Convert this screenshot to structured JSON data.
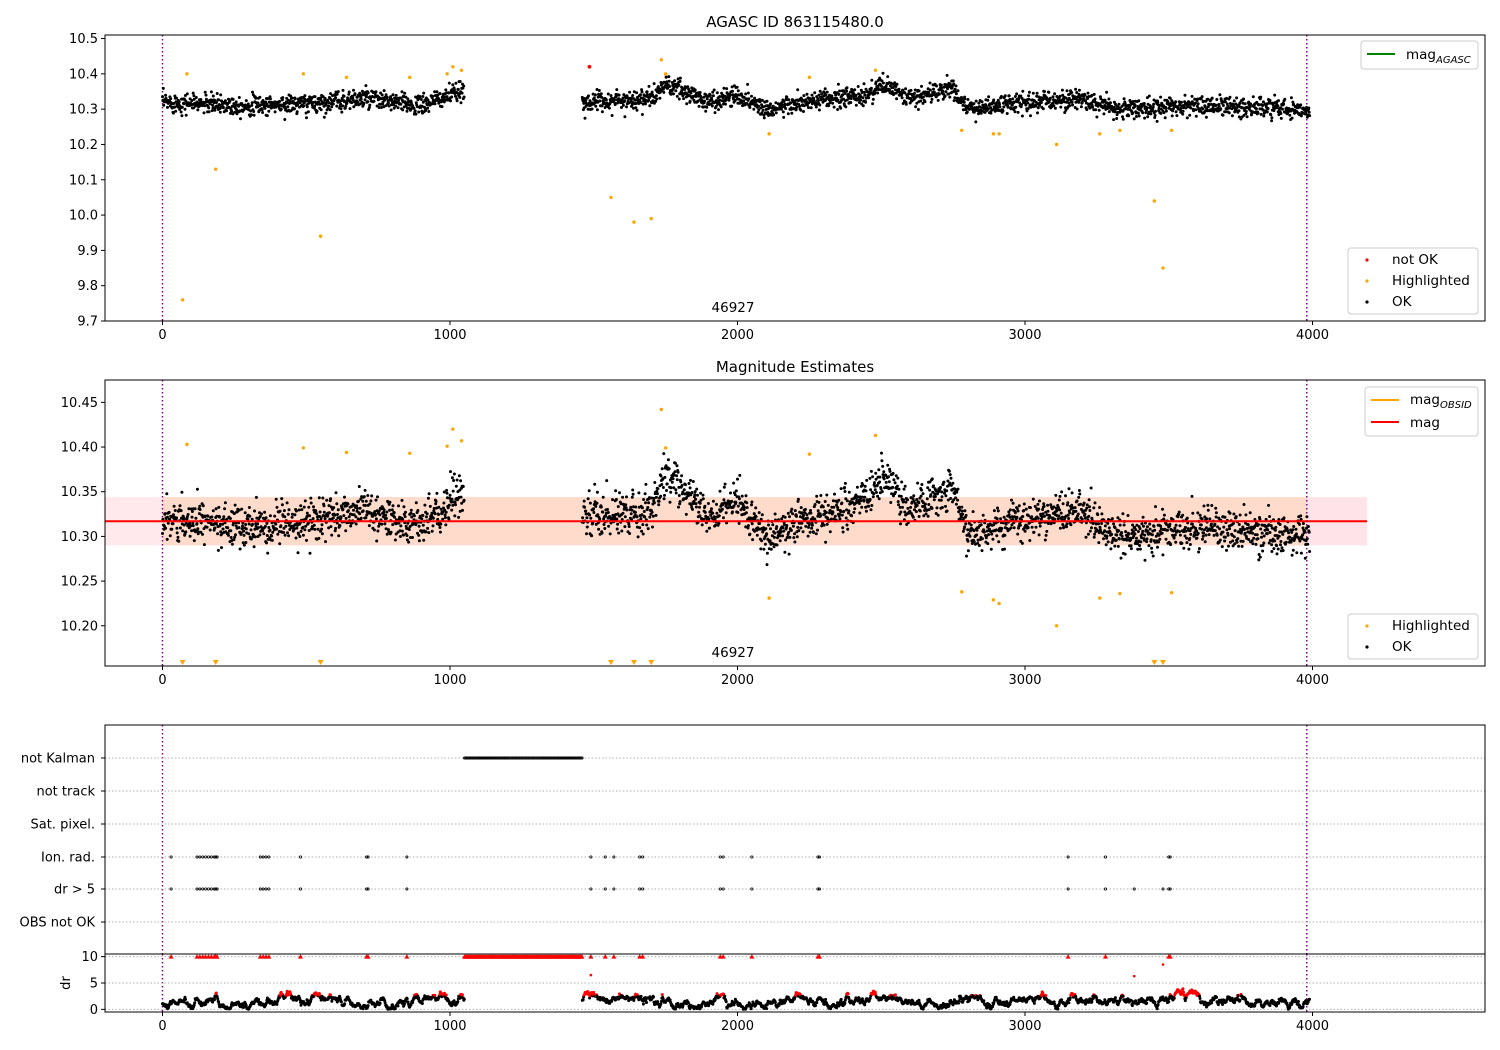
{
  "colors": {
    "ok": "#000000",
    "highlighted": "#ffa500",
    "not_ok": "#ff0000",
    "mag_agasc": "#008000",
    "mag_obsid": "#ffa500",
    "mag": "#ff0000",
    "band": "#ffb08f",
    "band_right": "#ffc0cb",
    "obs_marker": "#800080"
  },
  "chart_data": [
    {
      "type": "scatter",
      "title": "AGASC ID 863115480.0",
      "xlim": [
        -200,
        4600
      ],
      "ylim": [
        9.7,
        10.51
      ],
      "xticks": [
        0,
        1000,
        2000,
        3000,
        4000
      ],
      "yticks": [
        9.7,
        9.8,
        9.9,
        10.0,
        10.1,
        10.2,
        10.3,
        10.4,
        10.5
      ],
      "ytick_labels": [
        "9.7",
        "9.8",
        "9.9",
        "10.0",
        "10.1",
        "10.2",
        "10.3",
        "10.4",
        "10.5"
      ],
      "obs_boundaries": [
        0,
        3980
      ],
      "obs_label": "46927",
      "obs_label_x": 1990,
      "line_legend": [
        {
          "name": "mag",
          "sub": "AGASC",
          "color": "#008000"
        }
      ],
      "scatter_legend": [
        {
          "name": "not OK",
          "color": "#ff0000"
        },
        {
          "name": "Highlighted",
          "color": "#ffa500"
        },
        {
          "name": "OK",
          "color": "#000000"
        }
      ],
      "ok_segments": [
        {
          "x": [
            0,
            1050
          ],
          "trend": [
            [
              0,
              10.32
            ],
            [
              300,
              10.31
            ],
            [
              500,
              10.315
            ],
            [
              700,
              10.33
            ],
            [
              900,
              10.31
            ],
            [
              1000,
              10.34
            ],
            [
              1050,
              10.35
            ]
          ],
          "scatter": 0.025
        },
        {
          "x": [
            1460,
            3990
          ],
          "trend": [
            [
              1460,
              10.32
            ],
            [
              1700,
              10.33
            ],
            [
              1750,
              10.37
            ],
            [
              1900,
              10.32
            ],
            [
              2000,
              10.34
            ],
            [
              2100,
              10.3
            ],
            [
              2250,
              10.32
            ],
            [
              2450,
              10.34
            ],
            [
              2500,
              10.37
            ],
            [
              2600,
              10.33
            ],
            [
              2750,
              10.36
            ],
            [
              2800,
              10.3
            ],
            [
              3000,
              10.32
            ],
            [
              3200,
              10.33
            ],
            [
              3300,
              10.3
            ],
            [
              3600,
              10.31
            ],
            [
              3990,
              10.3
            ]
          ],
          "scatter": 0.025
        }
      ],
      "highlighted_points": [
        [
          70,
          9.76
        ],
        [
          85,
          10.4
        ],
        [
          185,
          10.13
        ],
        [
          490,
          10.4
        ],
        [
          550,
          9.94
        ],
        [
          640,
          10.39
        ],
        [
          860,
          10.39
        ],
        [
          990,
          10.4
        ],
        [
          1010,
          10.42
        ],
        [
          1040,
          10.41
        ],
        [
          1560,
          10.05
        ],
        [
          1640,
          9.98
        ],
        [
          1700,
          9.99
        ],
        [
          1735,
          10.44
        ],
        [
          1750,
          10.4
        ],
        [
          2110,
          10.23
        ],
        [
          2250,
          10.39
        ],
        [
          2480,
          10.41
        ],
        [
          2780,
          10.24
        ],
        [
          2890,
          10.23
        ],
        [
          2910,
          10.23
        ],
        [
          3110,
          10.2
        ],
        [
          3260,
          10.23
        ],
        [
          3330,
          10.24
        ],
        [
          3450,
          10.04
        ],
        [
          3480,
          9.85
        ],
        [
          3510,
          10.24
        ]
      ],
      "not_ok_points": [
        [
          1485,
          10.42
        ]
      ]
    },
    {
      "type": "scatter",
      "title": "Magnitude Estimates",
      "xlim": [
        -200,
        4600
      ],
      "ylim": [
        10.155,
        10.475
      ],
      "xticks": [
        0,
        1000,
        2000,
        3000,
        4000
      ],
      "yticks": [
        10.2,
        10.25,
        10.3,
        10.35,
        10.4,
        10.45
      ],
      "ytick_labels": [
        "10.20",
        "10.25",
        "10.30",
        "10.35",
        "10.40",
        "10.45"
      ],
      "obs_boundaries": [
        0,
        3980
      ],
      "obs_label": "46927",
      "obs_label_x": 1990,
      "mag_line": 10.317,
      "band": [
        10.29,
        10.344
      ],
      "band_x": [
        0,
        3980
      ],
      "band_right_x": [
        3980,
        4190
      ],
      "line_legend": [
        {
          "name": "mag",
          "sub": "OBSID",
          "color": "#ffa500"
        },
        {
          "name": "mag",
          "sub": "",
          "color": "#ff0000"
        }
      ],
      "scatter_legend": [
        {
          "name": "Highlighted",
          "color": "#ffa500"
        },
        {
          "name": "OK",
          "color": "#000000"
        }
      ],
      "ok_segments": [
        {
          "x": [
            0,
            1050
          ],
          "trend": [
            [
              0,
              10.32
            ],
            [
              300,
              10.31
            ],
            [
              500,
              10.315
            ],
            [
              700,
              10.33
            ],
            [
              900,
              10.31
            ],
            [
              1000,
              10.34
            ],
            [
              1050,
              10.35
            ]
          ],
          "scatter": 0.02
        },
        {
          "x": [
            1460,
            3990
          ],
          "trend": [
            [
              1460,
              10.32
            ],
            [
              1700,
              10.33
            ],
            [
              1750,
              10.37
            ],
            [
              1900,
              10.32
            ],
            [
              2000,
              10.34
            ],
            [
              2100,
              10.3
            ],
            [
              2250,
              10.32
            ],
            [
              2450,
              10.34
            ],
            [
              2500,
              10.37
            ],
            [
              2600,
              10.33
            ],
            [
              2750,
              10.36
            ],
            [
              2800,
              10.3
            ],
            [
              3000,
              10.32
            ],
            [
              3200,
              10.33
            ],
            [
              3300,
              10.3
            ],
            [
              3600,
              10.31
            ],
            [
              3990,
              10.3
            ]
          ],
          "scatter": 0.02
        }
      ],
      "highlighted_points": [
        [
          85,
          10.403
        ],
        [
          490,
          10.399
        ],
        [
          640,
          10.394
        ],
        [
          860,
          10.393
        ],
        [
          990,
          10.401
        ],
        [
          1010,
          10.42
        ],
        [
          1040,
          10.407
        ],
        [
          1735,
          10.442
        ],
        [
          1750,
          10.399
        ],
        [
          2110,
          10.231
        ],
        [
          2250,
          10.392
        ],
        [
          2480,
          10.413
        ],
        [
          2780,
          10.238
        ],
        [
          2890,
          10.229
        ],
        [
          2910,
          10.225
        ],
        [
          3110,
          10.2
        ],
        [
          3260,
          10.231
        ],
        [
          3330,
          10.236
        ],
        [
          3510,
          10.237
        ]
      ],
      "off_scale_markers": [
        70,
        185,
        550,
        1560,
        1640,
        1700,
        3450,
        3480
      ]
    },
    {
      "type": "event_strip",
      "xlim": [
        -200,
        4600
      ],
      "xticks": [
        0,
        1000,
        2000,
        3000,
        4000
      ],
      "obs_boundaries": [
        0,
        3980
      ],
      "rows": [
        {
          "label": "not Kalman",
          "ranges": [
            [
              1050,
              1460
            ]
          ],
          "points": []
        },
        {
          "label": "not track",
          "ranges": [],
          "points": []
        },
        {
          "label": "Sat. pixel.",
          "ranges": [],
          "points": []
        },
        {
          "label": "Ion. rad.",
          "ranges": [],
          "points": [
            30,
            120,
            130,
            140,
            150,
            160,
            170,
            180,
            185,
            190,
            340,
            350,
            360,
            370,
            480,
            710,
            715,
            850,
            1490,
            1540,
            1570,
            1660,
            1670,
            1940,
            1950,
            2050,
            2280,
            2285,
            3150,
            3280,
            3500,
            3505
          ]
        },
        {
          "label": "dr > 5",
          "ranges": [],
          "points": [
            30,
            120,
            130,
            140,
            150,
            160,
            170,
            180,
            185,
            190,
            340,
            350,
            360,
            370,
            480,
            710,
            715,
            850,
            1490,
            1540,
            1570,
            1660,
            1670,
            1940,
            1950,
            2050,
            2280,
            2285,
            3150,
            3280,
            3380,
            3480,
            3500,
            3505
          ]
        },
        {
          "label": "OBS not OK",
          "ranges": [],
          "points": []
        }
      ]
    },
    {
      "type": "scatter",
      "ylabel": "dr",
      "xlim": [
        -200,
        4600
      ],
      "ylim": [
        -0.5,
        10.5
      ],
      "xticks": [
        0,
        1000,
        2000,
        3000,
        4000
      ],
      "yticks": [
        0,
        5,
        10
      ],
      "ytick_labels": [
        "0",
        "5",
        "10"
      ],
      "obs_boundaries": [
        0,
        3980
      ],
      "segments": [
        [
          0,
          1050
        ],
        [
          1460,
          3990
        ]
      ],
      "capped_value": 10,
      "capped_points": [
        30,
        120,
        130,
        140,
        150,
        160,
        170,
        180,
        185,
        190,
        340,
        350,
        360,
        370,
        480,
        710,
        715,
        850,
        1490,
        1540,
        1570,
        1660,
        1670,
        1940,
        1950,
        2050,
        2280,
        2285,
        3150,
        3280,
        3500,
        3505
      ],
      "capped_range": [
        1050,
        1460
      ],
      "outliers": [
        [
          1490,
          6.5
        ],
        [
          3380,
          6.3
        ],
        [
          3480,
          8.5
        ]
      ]
    }
  ]
}
